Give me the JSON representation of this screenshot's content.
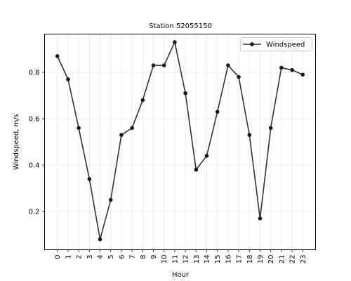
{
  "chart_data": {
    "type": "line",
    "title": "Station 52055150",
    "xlabel": "Hour",
    "ylabel": "Windspeed, m/s",
    "x": [
      0,
      1,
      2,
      3,
      4,
      5,
      6,
      7,
      8,
      9,
      10,
      11,
      12,
      13,
      14,
      15,
      16,
      17,
      18,
      19,
      20,
      21,
      22,
      23
    ],
    "x_tick_labels": [
      "0",
      "1",
      "2",
      "3",
      "4",
      "5",
      "6",
      "7",
      "8",
      "9",
      "10",
      "11",
      "12",
      "13",
      "14",
      "15",
      "16",
      "17",
      "18",
      "19",
      "20",
      "21",
      "22",
      "23"
    ],
    "y_ticks": [
      0.2,
      0.4,
      0.6,
      0.8
    ],
    "y_tick_labels": [
      "0.2",
      "0.4",
      "0.6",
      "0.8"
    ],
    "xlim": [
      -1.2,
      24.2
    ],
    "ylim": [
      0.035,
      0.965
    ],
    "grid": true,
    "legend_position": "top-right",
    "series": [
      {
        "name": "Windspeed",
        "color": "#333333",
        "marker_color": "#1a1a1a",
        "values": [
          0.87,
          0.77,
          0.56,
          0.34,
          0.08,
          0.25,
          0.53,
          0.56,
          0.68,
          0.83,
          0.83,
          0.93,
          0.71,
          0.38,
          0.44,
          0.63,
          0.83,
          0.78,
          0.53,
          0.17,
          0.56,
          0.82,
          0.81,
          0.79
        ]
      }
    ]
  }
}
